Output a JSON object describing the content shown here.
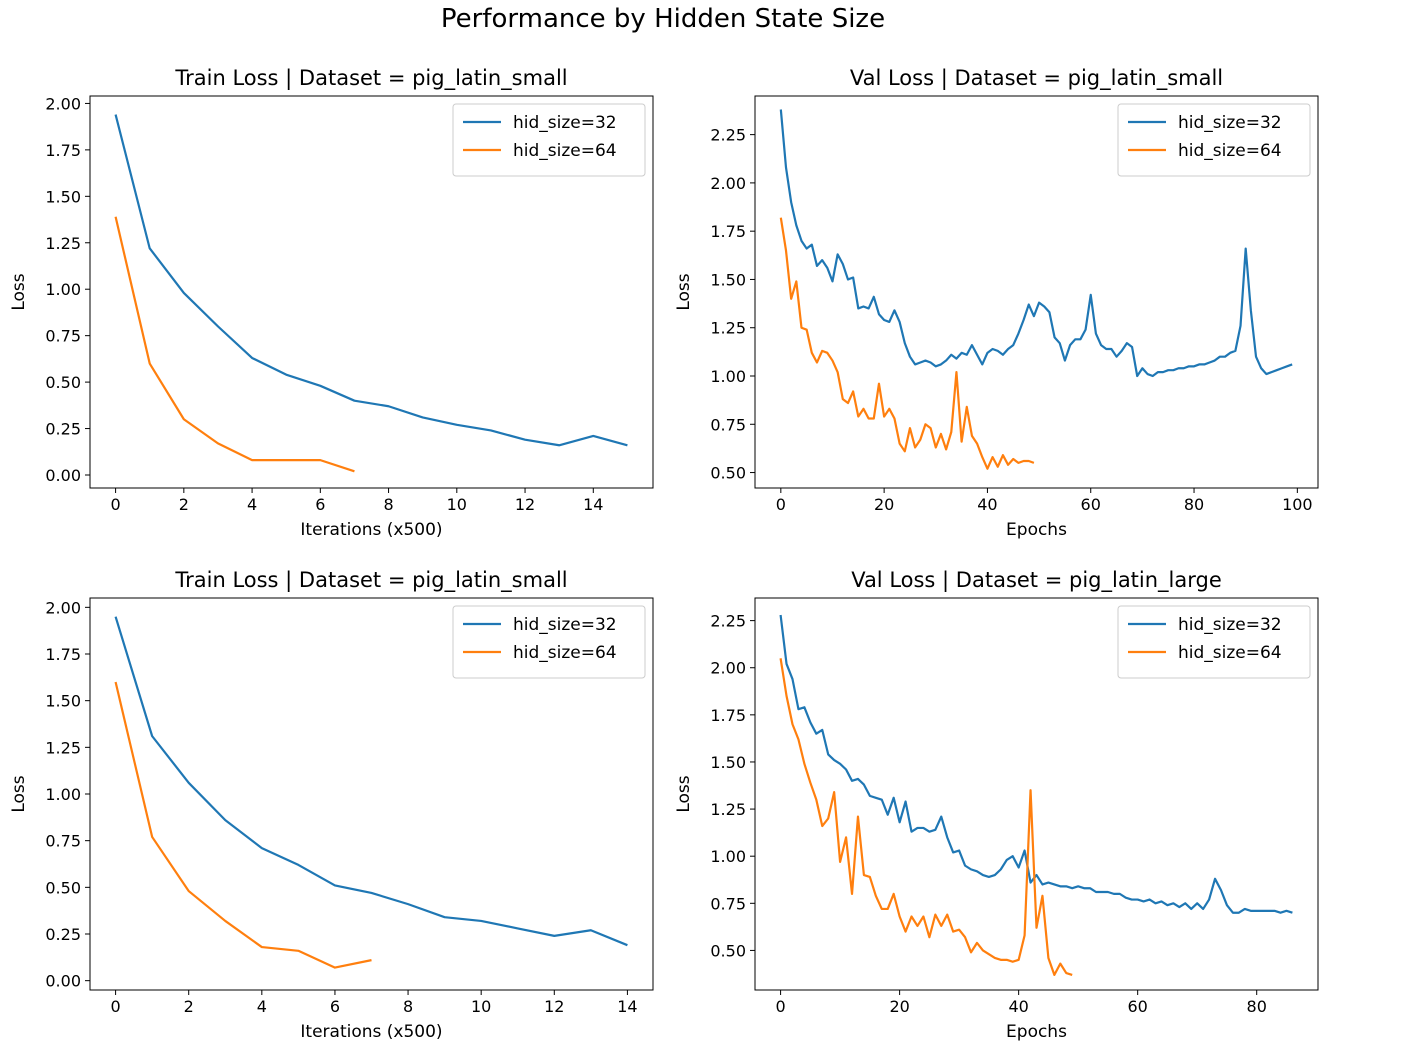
{
  "suptitle": "Performance by Hidden State Size",
  "colors": {
    "hid_size=32": "#1f77b4",
    "hid_size=64": "#ff7f0e"
  },
  "chart_data": [
    {
      "type": "line",
      "title": "Train Loss | Dataset = pig_latin_small",
      "xlabel": "Iterations (x500)",
      "ylabel": "Loss",
      "xlim": [
        -0.75,
        15.75
      ],
      "ylim": [
        -0.07,
        2.04
      ],
      "xticks": [
        0,
        2,
        4,
        6,
        8,
        10,
        12,
        14
      ],
      "yticks": [
        0.0,
        0.25,
        0.5,
        0.75,
        1.0,
        1.25,
        1.5,
        1.75,
        2.0
      ],
      "legend": "upper right",
      "series": [
        {
          "name": "hid_size=32",
          "x": [
            0,
            1,
            2,
            3,
            4,
            5,
            6,
            7,
            8,
            9,
            10,
            11,
            12,
            13,
            14,
            15
          ],
          "y": [
            1.94,
            1.22,
            0.98,
            0.8,
            0.63,
            0.54,
            0.48,
            0.4,
            0.37,
            0.31,
            0.27,
            0.24,
            0.19,
            0.16,
            0.21,
            0.16
          ]
        },
        {
          "name": "hid_size=64",
          "x": [
            0,
            1,
            2,
            3,
            4,
            5,
            6,
            7
          ],
          "y": [
            1.39,
            0.6,
            0.3,
            0.17,
            0.08,
            0.08,
            0.08,
            0.02
          ]
        }
      ]
    },
    {
      "type": "line",
      "title": "Val Loss | Dataset = pig_latin_small",
      "xlabel": "Epochs",
      "ylabel": "Loss",
      "xlim": [
        -5,
        104
      ],
      "ylim": [
        0.42,
        2.45
      ],
      "xticks": [
        0,
        20,
        40,
        60,
        80,
        100
      ],
      "yticks": [
        0.5,
        0.75,
        1.0,
        1.25,
        1.5,
        1.75,
        2.0,
        2.25
      ],
      "legend": "upper right",
      "series": [
        {
          "name": "hid_size=32",
          "x": [
            0,
            1,
            2,
            3,
            4,
            5,
            6,
            7,
            8,
            9,
            10,
            11,
            12,
            13,
            14,
            15,
            16,
            17,
            18,
            19,
            20,
            21,
            22,
            23,
            24,
            25,
            26,
            27,
            28,
            29,
            30,
            31,
            32,
            33,
            34,
            35,
            36,
            37,
            38,
            39,
            40,
            41,
            42,
            43,
            44,
            45,
            46,
            47,
            48,
            49,
            50,
            51,
            52,
            53,
            54,
            55,
            56,
            57,
            58,
            59,
            60,
            61,
            62,
            63,
            64,
            65,
            66,
            67,
            68,
            69,
            70,
            71,
            72,
            73,
            74,
            75,
            76,
            77,
            78,
            79,
            80,
            81,
            82,
            83,
            84,
            85,
            86,
            87,
            88,
            89,
            90,
            91,
            92,
            93,
            94,
            95,
            96,
            97,
            98,
            99
          ],
          "y": [
            2.38,
            2.08,
            1.9,
            1.78,
            1.7,
            1.66,
            1.68,
            1.57,
            1.6,
            1.56,
            1.49,
            1.63,
            1.58,
            1.5,
            1.51,
            1.35,
            1.36,
            1.35,
            1.41,
            1.32,
            1.29,
            1.28,
            1.34,
            1.28,
            1.17,
            1.1,
            1.06,
            1.07,
            1.08,
            1.07,
            1.05,
            1.06,
            1.08,
            1.11,
            1.09,
            1.12,
            1.11,
            1.16,
            1.11,
            1.06,
            1.12,
            1.14,
            1.13,
            1.11,
            1.14,
            1.16,
            1.22,
            1.29,
            1.37,
            1.31,
            1.38,
            1.36,
            1.33,
            1.2,
            1.17,
            1.08,
            1.16,
            1.19,
            1.19,
            1.24,
            1.42,
            1.22,
            1.16,
            1.14,
            1.14,
            1.1,
            1.13,
            1.17,
            1.15,
            1.0,
            1.04,
            1.01,
            1.0,
            1.02,
            1.02,
            1.03,
            1.03,
            1.04,
            1.04,
            1.05,
            1.05,
            1.06,
            1.06,
            1.07,
            1.08,
            1.1,
            1.1,
            1.12,
            1.13,
            1.26,
            1.66,
            1.34,
            1.1,
            1.04,
            1.01,
            1.02,
            1.03,
            1.04,
            1.05,
            1.06
          ]
        },
        {
          "name": "hid_size=64",
          "x": [
            0,
            1,
            2,
            3,
            4,
            5,
            6,
            7,
            8,
            9,
            10,
            11,
            12,
            13,
            14,
            15,
            16,
            17,
            18,
            19,
            20,
            21,
            22,
            23,
            24,
            25,
            26,
            27,
            28,
            29,
            30,
            31,
            32,
            33,
            34,
            35,
            36,
            37,
            38,
            39,
            40,
            41,
            42,
            43,
            44,
            45,
            46,
            47,
            48,
            49
          ],
          "y": [
            1.82,
            1.65,
            1.4,
            1.49,
            1.25,
            1.24,
            1.12,
            1.07,
            1.13,
            1.12,
            1.08,
            1.02,
            0.88,
            0.86,
            0.92,
            0.79,
            0.83,
            0.78,
            0.78,
            0.96,
            0.79,
            0.83,
            0.78,
            0.65,
            0.61,
            0.73,
            0.63,
            0.67,
            0.75,
            0.73,
            0.63,
            0.7,
            0.62,
            0.71,
            1.02,
            0.66,
            0.84,
            0.69,
            0.65,
            0.58,
            0.52,
            0.58,
            0.53,
            0.59,
            0.54,
            0.57,
            0.55,
            0.56,
            0.56,
            0.55
          ]
        }
      ]
    },
    {
      "type": "line",
      "title": "Train Loss | Dataset = pig_latin_small",
      "xlabel": "Iterations (x500)",
      "ylabel": "Loss",
      "xlim": [
        -0.7,
        14.7
      ],
      "ylim": [
        -0.05,
        2.05
      ],
      "xticks": [
        0,
        2,
        4,
        6,
        8,
        10,
        12,
        14
      ],
      "yticks": [
        0.0,
        0.25,
        0.5,
        0.75,
        1.0,
        1.25,
        1.5,
        1.75,
        2.0
      ],
      "legend": "upper right",
      "series": [
        {
          "name": "hid_size=32",
          "x": [
            0,
            1,
            2,
            3,
            4,
            5,
            6,
            7,
            8,
            9,
            10,
            11,
            12,
            13,
            14
          ],
          "y": [
            1.95,
            1.31,
            1.06,
            0.86,
            0.71,
            0.62,
            0.51,
            0.47,
            0.41,
            0.34,
            0.32,
            0.28,
            0.24,
            0.27,
            0.19
          ]
        },
        {
          "name": "hid_size=64",
          "x": [
            0,
            1,
            2,
            3,
            4,
            5,
            6,
            7
          ],
          "y": [
            1.6,
            0.77,
            0.48,
            0.32,
            0.18,
            0.16,
            0.07,
            0.11
          ]
        }
      ]
    },
    {
      "type": "line",
      "title": "Val Loss | Dataset = pig_latin_large",
      "xlabel": "Epochs",
      "ylabel": "Loss",
      "xlim": [
        -4.3,
        90.3
      ],
      "ylim": [
        0.29,
        2.37
      ],
      "xticks": [
        0,
        20,
        40,
        60,
        80
      ],
      "yticks": [
        0.5,
        0.75,
        1.0,
        1.25,
        1.5,
        1.75,
        2.0,
        2.25
      ],
      "legend": "upper right",
      "series": [
        {
          "name": "hid_size=32",
          "x": [
            0,
            1,
            2,
            3,
            4,
            5,
            6,
            7,
            8,
            9,
            10,
            11,
            12,
            13,
            14,
            15,
            16,
            17,
            18,
            19,
            20,
            21,
            22,
            23,
            24,
            25,
            26,
            27,
            28,
            29,
            30,
            31,
            32,
            33,
            34,
            35,
            36,
            37,
            38,
            39,
            40,
            41,
            42,
            43,
            44,
            45,
            46,
            47,
            48,
            49,
            50,
            51,
            52,
            53,
            54,
            55,
            56,
            57,
            58,
            59,
            60,
            61,
            62,
            63,
            64,
            65,
            66,
            67,
            68,
            69,
            70,
            71,
            72,
            73,
            74,
            75,
            76,
            77,
            78,
            79,
            80,
            81,
            82,
            83,
            84,
            85,
            86
          ],
          "y": [
            2.28,
            2.02,
            1.94,
            1.78,
            1.79,
            1.71,
            1.65,
            1.67,
            1.54,
            1.51,
            1.49,
            1.46,
            1.4,
            1.41,
            1.38,
            1.32,
            1.31,
            1.3,
            1.22,
            1.31,
            1.18,
            1.29,
            1.13,
            1.15,
            1.15,
            1.13,
            1.14,
            1.21,
            1.1,
            1.02,
            1.03,
            0.95,
            0.93,
            0.92,
            0.9,
            0.89,
            0.9,
            0.93,
            0.98,
            1.0,
            0.94,
            1.03,
            0.86,
            0.9,
            0.85,
            0.86,
            0.85,
            0.84,
            0.84,
            0.83,
            0.84,
            0.83,
            0.83,
            0.81,
            0.81,
            0.81,
            0.8,
            0.8,
            0.78,
            0.77,
            0.77,
            0.76,
            0.77,
            0.75,
            0.76,
            0.74,
            0.75,
            0.73,
            0.75,
            0.72,
            0.75,
            0.72,
            0.77,
            0.88,
            0.82,
            0.74,
            0.7,
            0.7,
            0.72,
            0.71,
            0.71,
            0.71,
            0.71,
            0.71,
            0.7,
            0.71,
            0.7
          ]
        },
        {
          "name": "hid_size=64",
          "x": [
            0,
            1,
            2,
            3,
            4,
            5,
            6,
            7,
            8,
            9,
            10,
            11,
            12,
            13,
            14,
            15,
            16,
            17,
            18,
            19,
            20,
            21,
            22,
            23,
            24,
            25,
            26,
            27,
            28,
            29,
            30,
            31,
            32,
            33,
            34,
            35,
            36,
            37,
            38,
            39,
            40,
            41,
            42,
            43,
            44,
            45,
            46,
            47,
            48,
            49
          ],
          "y": [
            2.05,
            1.85,
            1.7,
            1.62,
            1.49,
            1.39,
            1.3,
            1.16,
            1.2,
            1.34,
            0.97,
            1.1,
            0.8,
            1.21,
            0.9,
            0.89,
            0.79,
            0.72,
            0.72,
            0.8,
            0.68,
            0.6,
            0.68,
            0.63,
            0.68,
            0.57,
            0.69,
            0.63,
            0.69,
            0.6,
            0.61,
            0.57,
            0.49,
            0.54,
            0.5,
            0.48,
            0.46,
            0.45,
            0.45,
            0.44,
            0.45,
            0.58,
            1.35,
            0.62,
            0.79,
            0.46,
            0.37,
            0.43,
            0.38,
            0.37
          ]
        }
      ]
    }
  ]
}
